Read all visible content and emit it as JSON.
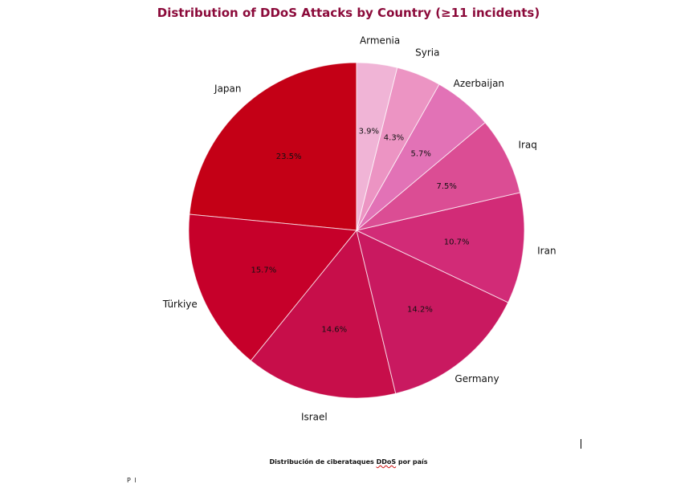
{
  "chart_data": {
    "type": "pie",
    "title": "Distribution of DDoS Attacks by Country (≥11 incidents)",
    "slices": [
      {
        "label": "Japan",
        "value": 23.5,
        "pct_label": "23.5%",
        "color": "#c40016"
      },
      {
        "label": "Türkiye",
        "value": 15.7,
        "pct_label": "15.7%",
        "color": "#c6002a"
      },
      {
        "label": "Israel",
        "value": 14.6,
        "pct_label": "14.6%",
        "color": "#c70e4a"
      },
      {
        "label": "Germany",
        "value": 14.2,
        "pct_label": "14.2%",
        "color": "#c91960"
      },
      {
        "label": "Iran",
        "value": 10.7,
        "pct_label": "10.7%",
        "color": "#d22b77"
      },
      {
        "label": "Iraq",
        "value": 7.5,
        "pct_label": "7.5%",
        "color": "#db4d94"
      },
      {
        "label": "Azerbaijan",
        "value": 5.7,
        "pct_label": "5.7%",
        "color": "#e272b6"
      },
      {
        "label": "Syria",
        "value": 4.3,
        "pct_label": "4.3%",
        "color": "#ec94c3"
      },
      {
        "label": "Armenia",
        "value": 3.9,
        "pct_label": "3.9%",
        "color": "#f0b4d6"
      }
    ],
    "start_angle": "12 o'clock",
    "direction": "counterclockwise",
    "legend": "none"
  },
  "caption": {
    "before": "Distribución de ciberataques ",
    "flagged": "DDoS",
    "after": " por país"
  },
  "stray_text": "P     l"
}
